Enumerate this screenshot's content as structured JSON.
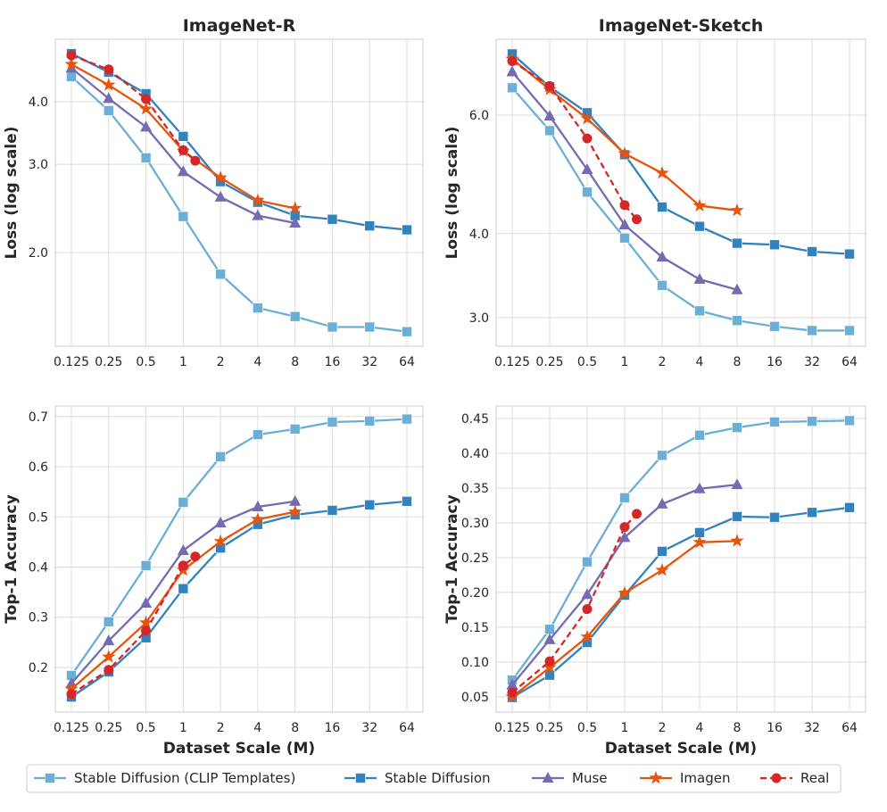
{
  "chart_data": [
    {
      "type": "line",
      "title": "ImageNet-R",
      "xlabel": "",
      "ylabel": "Loss (log scale)",
      "yscale": "log",
      "ylim": [
        1.3,
        5.33
      ],
      "yticks": [
        2.0,
        3.0,
        4.0
      ],
      "ytick_labels": [
        "2.0",
        "3.0",
        "4.0"
      ],
      "xscale": "log2",
      "xticks": [
        0.125,
        0.25,
        0.5,
        1,
        2,
        4,
        8,
        16,
        32,
        64
      ],
      "xtick_labels": [
        "0.125",
        "0.25",
        "0.5",
        "1",
        "2",
        "4",
        "8",
        "16",
        "32",
        "64"
      ],
      "grid": true,
      "series": [
        {
          "name": "Stable Diffusion (CLIP Templates)",
          "x": [
            0.125,
            0.25,
            0.5,
            1,
            2,
            4,
            8,
            16,
            32,
            64
          ],
          "y": [
            4.49,
            3.84,
            3.09,
            2.36,
            1.81,
            1.55,
            1.49,
            1.42,
            1.42,
            1.39
          ]
        },
        {
          "name": "Stable Diffusion",
          "x": [
            0.125,
            0.25,
            0.5,
            1,
            2,
            4,
            8,
            16,
            32,
            64
          ],
          "y": [
            4.99,
            4.58,
            4.15,
            3.41,
            2.77,
            2.52,
            2.37,
            2.33,
            2.26,
            2.22
          ]
        },
        {
          "name": "Muse",
          "x": [
            0.125,
            0.25,
            0.5,
            1,
            2,
            4,
            8
          ],
          "y": [
            4.67,
            4.06,
            3.56,
            2.9,
            2.58,
            2.37,
            2.29
          ]
        },
        {
          "name": "Imagen",
          "x": [
            0.125,
            0.25,
            0.5,
            1,
            2,
            4,
            8
          ],
          "y": [
            4.75,
            4.32,
            3.87,
            3.19,
            2.82,
            2.54,
            2.45
          ]
        },
        {
          "name": "Real",
          "x": [
            0.125,
            0.25,
            0.5,
            1,
            1.25
          ],
          "y": [
            4.95,
            4.64,
            4.05,
            3.2,
            3.05
          ]
        }
      ]
    },
    {
      "type": "line",
      "title": "ImageNet-Sketch",
      "xlabel": "",
      "ylabel": "Loss (log scale)",
      "yscale": "log",
      "ylim": [
        2.72,
        7.78
      ],
      "yticks": [
        3.0,
        4.0,
        6.0
      ],
      "ytick_labels": [
        "3.0",
        "4.0",
        "6.0"
      ],
      "xscale": "log2",
      "xticks": [
        0.125,
        0.25,
        0.5,
        1,
        2,
        4,
        8,
        16,
        32,
        64
      ],
      "xtick_labels": [
        "0.125",
        "0.25",
        "0.5",
        "1",
        "2",
        "4",
        "8",
        "16",
        "32",
        "64"
      ],
      "grid": true,
      "series": [
        {
          "name": "Stable Diffusion (CLIP Templates)",
          "x": [
            0.125,
            0.25,
            0.5,
            1,
            2,
            4,
            8,
            16,
            32,
            64
          ],
          "y": [
            6.59,
            5.69,
            4.61,
            3.94,
            3.35,
            3.07,
            2.97,
            2.91,
            2.87,
            2.87
          ]
        },
        {
          "name": "Stable Diffusion",
          "x": [
            0.125,
            0.25,
            0.5,
            1,
            2,
            4,
            8,
            16,
            32,
            64
          ],
          "y": [
            7.4,
            6.61,
            6.05,
            5.24,
            4.38,
            4.1,
            3.87,
            3.85,
            3.76,
            3.73
          ]
        },
        {
          "name": "Muse",
          "x": [
            0.125,
            0.25,
            0.5,
            1,
            2,
            4,
            8
          ],
          "y": [
            6.96,
            5.98,
            4.98,
            4.12,
            3.69,
            3.42,
            3.3
          ]
        },
        {
          "name": "Imagen",
          "x": [
            0.125,
            0.25,
            0.5,
            1,
            2,
            4,
            8
          ],
          "y": [
            7.27,
            6.55,
            5.93,
            5.26,
            4.92,
            4.4,
            4.33
          ]
        },
        {
          "name": "Real",
          "x": [
            0.125,
            0.25,
            0.5,
            1,
            1.25
          ],
          "y": [
            7.22,
            6.63,
            5.54,
            4.41,
            4.2
          ]
        }
      ]
    },
    {
      "type": "line",
      "title": "",
      "xlabel": "Dataset Scale (M)",
      "ylabel": "Top-1 Accuracy",
      "yscale": "linear",
      "ylim": [
        0.111,
        0.721
      ],
      "yticks": [
        0.2,
        0.3,
        0.4,
        0.5,
        0.6,
        0.7
      ],
      "ytick_labels": [
        "0.2",
        "0.3",
        "0.4",
        "0.5",
        "0.6",
        "0.7"
      ],
      "xscale": "log2",
      "xticks": [
        0.125,
        0.25,
        0.5,
        1,
        2,
        4,
        8,
        16,
        32,
        64
      ],
      "xtick_labels": [
        "0.125",
        "0.25",
        "0.5",
        "1",
        "2",
        "4",
        "8",
        "16",
        "32",
        "64"
      ],
      "grid": true,
      "series": [
        {
          "name": "Stable Diffusion (CLIP Templates)",
          "x": [
            0.125,
            0.25,
            0.5,
            1,
            2,
            4,
            8,
            16,
            32,
            64
          ],
          "y": [
            0.184,
            0.291,
            0.403,
            0.529,
            0.62,
            0.664,
            0.675,
            0.689,
            0.691,
            0.695
          ]
        },
        {
          "name": "Stable Diffusion",
          "x": [
            0.125,
            0.25,
            0.5,
            1,
            2,
            4,
            8,
            16,
            32,
            64
          ],
          "y": [
            0.141,
            0.191,
            0.259,
            0.357,
            0.438,
            0.485,
            0.504,
            0.513,
            0.524,
            0.531
          ]
        },
        {
          "name": "Muse",
          "x": [
            0.125,
            0.25,
            0.5,
            1,
            2,
            4,
            8
          ],
          "y": [
            0.168,
            0.253,
            0.328,
            0.433,
            0.488,
            0.52,
            0.531
          ]
        },
        {
          "name": "Imagen",
          "x": [
            0.125,
            0.25,
            0.5,
            1,
            2,
            4,
            8
          ],
          "y": [
            0.157,
            0.221,
            0.289,
            0.394,
            0.451,
            0.495,
            0.51
          ]
        },
        {
          "name": "Real",
          "x": [
            0.125,
            0.25,
            0.5,
            1,
            1.25
          ],
          "y": [
            0.147,
            0.195,
            0.273,
            0.403,
            0.421
          ]
        }
      ]
    },
    {
      "type": "line",
      "title": "",
      "xlabel": "Dataset Scale (M)",
      "ylabel": "Top-1 Accuracy",
      "yscale": "linear",
      "ylim": [
        0.028,
        0.468
      ],
      "yticks": [
        0.05,
        0.1,
        0.15,
        0.2,
        0.25,
        0.3,
        0.35,
        0.4,
        0.45
      ],
      "ytick_labels": [
        "0.05",
        "0.10",
        "0.15",
        "0.20",
        "0.25",
        "0.30",
        "0.35",
        "0.40",
        "0.45"
      ],
      "xscale": "log2",
      "xticks": [
        0.125,
        0.25,
        0.5,
        1,
        2,
        4,
        8,
        16,
        32,
        64
      ],
      "xtick_labels": [
        "0.125",
        "0.25",
        "0.5",
        "1",
        "2",
        "4",
        "8",
        "16",
        "32",
        "64"
      ],
      "grid": true,
      "series": [
        {
          "name": "Stable Diffusion (CLIP Templates)",
          "x": [
            0.125,
            0.25,
            0.5,
            1,
            2,
            4,
            8,
            16,
            32,
            64
          ],
          "y": [
            0.074,
            0.147,
            0.244,
            0.336,
            0.397,
            0.426,
            0.437,
            0.445,
            0.446,
            0.447
          ]
        },
        {
          "name": "Stable Diffusion",
          "x": [
            0.125,
            0.25,
            0.5,
            1,
            2,
            4,
            8,
            16,
            32,
            64
          ],
          "y": [
            0.049,
            0.081,
            0.128,
            0.196,
            0.259,
            0.286,
            0.309,
            0.308,
            0.315,
            0.322
          ]
        },
        {
          "name": "Muse",
          "x": [
            0.125,
            0.25,
            0.5,
            1,
            2,
            4,
            8
          ],
          "y": [
            0.067,
            0.132,
            0.197,
            0.279,
            0.327,
            0.349,
            0.355
          ]
        },
        {
          "name": "Imagen",
          "x": [
            0.125,
            0.25,
            0.5,
            1,
            2,
            4,
            8
          ],
          "y": [
            0.05,
            0.092,
            0.136,
            0.199,
            0.232,
            0.272,
            0.274
          ]
        },
        {
          "name": "Real",
          "x": [
            0.125,
            0.25,
            0.5,
            1,
            1.25
          ],
          "y": [
            0.056,
            0.101,
            0.176,
            0.294,
            0.313
          ]
        }
      ]
    }
  ],
  "legend": {
    "placement": "bottom",
    "items": [
      {
        "label": "Stable Diffusion (CLIP Templates)",
        "color": "#6baed6",
        "marker": "square",
        "dash": false
      },
      {
        "label": "Stable Diffusion",
        "color": "#3182bd",
        "marker": "square",
        "dash": false
      },
      {
        "label": "Muse",
        "color": "#756bb1",
        "marker": "triangle",
        "dash": false
      },
      {
        "label": "Imagen",
        "color": "#e6550d",
        "marker": "star",
        "dash": false
      },
      {
        "label": "Real",
        "color": "#d62728",
        "marker": "circle",
        "dash": true
      }
    ]
  }
}
